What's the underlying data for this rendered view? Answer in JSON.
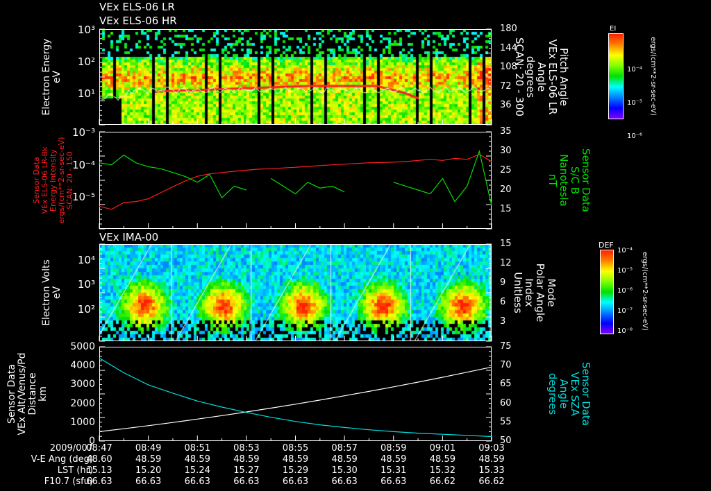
{
  "titles": {
    "top1": "VEx ELS-06 LR",
    "top2": "VEx ELS-06 HR",
    "ima": "VEx IMA-00"
  },
  "colors": {
    "ei_line": "#ff2020",
    "b_line": "#00e000",
    "sza_line": "#00e0e0",
    "alt_line": "#ffffff"
  },
  "colorbars": [
    {
      "title": "EI",
      "ticks": [
        "10⁻⁴",
        "10⁻⁵",
        "10⁻⁶"
      ],
      "units": "ergs/(cm**2-sr-sec-eV)"
    },
    {
      "title": "DEF",
      "ticks": [
        "10⁻⁴",
        "10⁻⁵",
        "10⁻⁶",
        "10⁻⁷",
        "10⁻⁸"
      ],
      "units": "ergs/(cm**2-sr-sec-eV)"
    }
  ],
  "chart_data": [
    {
      "type": "heatmap",
      "title": "VEx ELS-06 LR / VEx ELS-06 HR",
      "ylabel": [
        "Electron Energy",
        "eV"
      ],
      "yscale": "log",
      "ylim": [
        1,
        1000
      ],
      "yticks": [
        "10³",
        "10²",
        "10¹"
      ],
      "y2label": [
        "Pitch Angle",
        "VEx ELS-06 LR",
        "Angle",
        "degrees",
        "SCAN: 20 - 300"
      ],
      "y2lim": [
        0,
        180
      ],
      "y2ticks": [
        "180",
        "144",
        "108",
        "72",
        "36"
      ],
      "colorbar": "EI"
    },
    {
      "type": "line",
      "ylabel": [
        "Sensor Data",
        "VEx ELS-06 LR-Bk",
        "Energy Intensity",
        "ergs/(cm**2-sr-sec-eV)",
        "SCAN: 20 - 150"
      ],
      "yscale": "log",
      "ylim": [
        1e-06,
        0.001
      ],
      "yticks": [
        "10⁻³",
        "10⁻⁴",
        "10⁻⁵"
      ],
      "y2label": [
        "Sensor Data",
        "S/C B",
        "Nanotesla",
        "nT"
      ],
      "y2lim": [
        10,
        35
      ],
      "y2ticks": [
        "35",
        "30",
        "25",
        "20",
        "15"
      ],
      "x_minutes": [
        0,
        0.5,
        1,
        1.5,
        2,
        2.5,
        3,
        3.5,
        4,
        4.5,
        5,
        5.5,
        6,
        6.5,
        7,
        7.5,
        8,
        8.5,
        9,
        9.5,
        10,
        10.5,
        11,
        11.5,
        12,
        12.5,
        13,
        13.5,
        14,
        14.5,
        15,
        15.5,
        16
      ],
      "series": [
        {
          "name": "Energy Intensity",
          "axis": "left",
          "values": [
            5e-06,
            4e-06,
            6.5e-06,
            7e-06,
            8.5e-06,
            1.3e-05,
            2e-05,
            3e-05,
            4.2e-05,
            5e-05,
            5.5e-05,
            6e-05,
            6.5e-05,
            7e-05,
            7.2e-05,
            7.6e-05,
            8e-05,
            8.5e-05,
            9e-05,
            9.5e-05,
            0.0001,
            0.000105,
            0.00011,
            0.000112,
            0.000115,
            0.00012,
            0.00013,
            0.00014,
            0.00013,
            0.00015,
            0.00014,
            0.0002,
            0.00012
          ]
        },
        {
          "name": "S/C B",
          "axis": "right",
          "values": [
            27,
            26.5,
            29,
            27,
            26,
            25.5,
            24.5,
            23.5,
            22,
            24,
            18,
            21,
            20,
            null,
            23,
            21,
            19,
            22,
            20.5,
            21,
            19.5,
            null,
            17,
            null,
            22,
            21,
            20,
            19,
            23,
            17,
            21,
            30,
            16
          ]
        }
      ]
    },
    {
      "type": "heatmap",
      "title": "VEx IMA-00",
      "ylabel": [
        "Electron Volts",
        "eV"
      ],
      "yscale": "log",
      "ylim": [
        5,
        40000
      ],
      "yticks": [
        "10⁴",
        "10³",
        "10²"
      ],
      "y2label": [
        "Mode",
        "Polar Angle",
        "Index",
        "Unitless"
      ],
      "y2lim": [
        0,
        15
      ],
      "y2ticks": [
        "15",
        "12",
        "9",
        "6",
        "3"
      ],
      "polar_sweep_period_minutes": 3.25,
      "colorbar": "DEF"
    },
    {
      "type": "line",
      "ylabel": [
        "Sensor Data",
        "VEx Alt/Venus/Pd",
        "Distance",
        "km"
      ],
      "ylim": [
        0,
        5000
      ],
      "yticks": [
        "5000",
        "4000",
        "3000",
        "2000",
        "1000",
        "0"
      ],
      "y2label": [
        "Sensor Data",
        "VEx SZA",
        "Angle",
        "degrees"
      ],
      "y2lim": [
        50,
        75
      ],
      "y2ticks": [
        "75",
        "70",
        "65",
        "60",
        "55",
        "50"
      ],
      "x_minutes": [
        0,
        1,
        2,
        3,
        4,
        5,
        6,
        7,
        8,
        9,
        10,
        11,
        12,
        13,
        14,
        15,
        16
      ],
      "series": [
        {
          "name": "Altitude",
          "axis": "left",
          "values": [
            500,
            654,
            816,
            986,
            1164,
            1350,
            1544,
            1746,
            1956,
            2174,
            2400,
            2634,
            2876,
            3126,
            3384,
            3650,
            3924
          ]
        },
        {
          "name": "SZA",
          "axis": "right",
          "values": [
            72.0,
            68.1,
            64.9,
            62.7,
            60.6,
            59.0,
            57.6,
            56.3,
            55.2,
            54.3,
            53.6,
            53.0,
            52.5,
            52.1,
            51.8,
            51.5,
            51.2
          ]
        }
      ]
    }
  ],
  "xaxis": {
    "row_labels": [
      "2009/007",
      "V-E Ang (deg)",
      "LST (hr)",
      "F10.7 (sfu)"
    ],
    "times": [
      "08:47",
      "08:49",
      "08:51",
      "08:53",
      "08:55",
      "08:57",
      "08:59",
      "09:01",
      "09:03"
    ],
    "ve_ang": [
      "48.60",
      "48.59",
      "48.59",
      "48.59",
      "48.59",
      "48.59",
      "48.59",
      "48.59",
      "48.59"
    ],
    "lst": [
      "15.13",
      "15.20",
      "15.24",
      "15.27",
      "15.29",
      "15.30",
      "15.31",
      "15.32",
      "15.33"
    ],
    "f107": [
      "66.63",
      "66.63",
      "66.63",
      "66.63",
      "66.63",
      "66.63",
      "66.63",
      "66.62",
      "66.62"
    ]
  }
}
